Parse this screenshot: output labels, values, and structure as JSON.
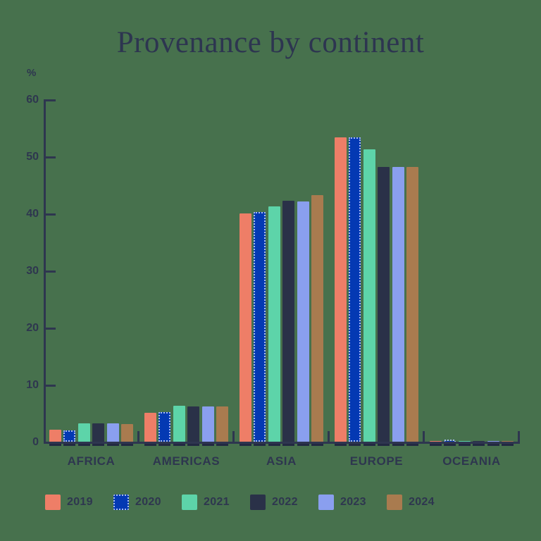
{
  "page": {
    "background": "#47714D",
    "title": "Provenance by continent"
  },
  "chart_data": {
    "type": "bar",
    "title": "Provenance by continent",
    "ylabel": "%",
    "xlabel": "",
    "ylim": [
      0,
      60
    ],
    "yticks": [
      0,
      10,
      20,
      30,
      40,
      50,
      60
    ],
    "grid": false,
    "legend_position": "bottom",
    "categories": [
      "AFRICA",
      "AMERICAS",
      "ASIA",
      "EUROPE",
      "OCEANIA"
    ],
    "series": [
      {
        "name": "2019",
        "color": "#EE7E67",
        "values": [
          2.1,
          5.1,
          40.0,
          53.3,
          0.1
        ]
      },
      {
        "name": "2020",
        "color": "#0439B3",
        "dotted_outline": true,
        "values": [
          2.0,
          5.2,
          40.2,
          53.3,
          0.1
        ]
      },
      {
        "name": "2021",
        "color": "#5DD4A9",
        "values": [
          3.2,
          6.3,
          41.2,
          51.2,
          0.1
        ]
      },
      {
        "name": "2022",
        "color": "#2A3148",
        "values": [
          3.2,
          6.2,
          42.2,
          48.2,
          0.1
        ]
      },
      {
        "name": "2023",
        "color": "#8A9FEF",
        "values": [
          3.2,
          6.2,
          42.1,
          48.2,
          0.1
        ]
      },
      {
        "name": "2024",
        "color": "#A97B4F",
        "values": [
          3.1,
          6.2,
          43.2,
          48.2,
          0.1
        ]
      }
    ],
    "colors": {
      "background": "#47714D",
      "text": "#2E364F",
      "axis": "#2E364F",
      "bar_base": "#222942",
      "dotted_outline": "#A9BCF0"
    }
  }
}
